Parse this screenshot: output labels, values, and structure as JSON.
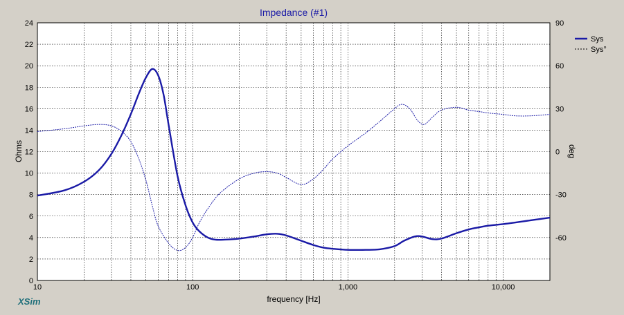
{
  "window": {
    "brand": "XSim"
  },
  "chart_data": {
    "type": "line",
    "title": "Impedance (#1)",
    "xlabel": "frequency [Hz]",
    "ylabel": "Ohms",
    "y2label": "deg",
    "xscale": "log",
    "xlim": [
      10,
      20000
    ],
    "ylim": [
      0,
      24
    ],
    "y2lim": [
      -90,
      90
    ],
    "grid": true,
    "legend_position": "top-right",
    "x_ticks": [
      {
        "value": 10,
        "label": "10"
      },
      {
        "value": 100,
        "label": "100"
      },
      {
        "value": 1000,
        "label": "1,000"
      },
      {
        "value": 10000,
        "label": "10,000"
      }
    ],
    "y_ticks": [
      "0",
      "2",
      "4",
      "6",
      "8",
      "10",
      "12",
      "14",
      "16",
      "18",
      "20",
      "22",
      "24"
    ],
    "y2_ticks": [
      "90",
      "60",
      "30",
      "0",
      "-30",
      "-60"
    ],
    "series": [
      {
        "name": "Sys",
        "axis": "left",
        "style": "solid-thick",
        "color": "#1a1aa6",
        "points": [
          [
            10,
            7.9
          ],
          [
            15,
            8.4
          ],
          [
            20,
            9.2
          ],
          [
            25,
            10.3
          ],
          [
            30,
            11.8
          ],
          [
            35,
            13.6
          ],
          [
            40,
            15.5
          ],
          [
            45,
            17.4
          ],
          [
            50,
            18.9
          ],
          [
            55,
            19.7
          ],
          [
            60,
            19.1
          ],
          [
            65,
            17.3
          ],
          [
            70,
            14.5
          ],
          [
            80,
            9.7
          ],
          [
            90,
            7.0
          ],
          [
            100,
            5.4
          ],
          [
            110,
            4.6
          ],
          [
            125,
            4.0
          ],
          [
            140,
            3.8
          ],
          [
            160,
            3.8
          ],
          [
            200,
            3.9
          ],
          [
            250,
            4.1
          ],
          [
            300,
            4.3
          ],
          [
            350,
            4.35
          ],
          [
            400,
            4.2
          ],
          [
            500,
            3.7
          ],
          [
            600,
            3.3
          ],
          [
            700,
            3.05
          ],
          [
            800,
            2.95
          ],
          [
            1000,
            2.85
          ],
          [
            1300,
            2.85
          ],
          [
            1600,
            2.9
          ],
          [
            2000,
            3.2
          ],
          [
            2300,
            3.7
          ],
          [
            2700,
            4.1
          ],
          [
            3000,
            4.1
          ],
          [
            3500,
            3.85
          ],
          [
            4000,
            3.9
          ],
          [
            5000,
            4.4
          ],
          [
            6000,
            4.75
          ],
          [
            7000,
            4.95
          ],
          [
            8000,
            5.1
          ],
          [
            10000,
            5.25
          ],
          [
            12000,
            5.4
          ],
          [
            15000,
            5.6
          ],
          [
            20000,
            5.85
          ]
        ]
      },
      {
        "name": "Sys°",
        "axis": "right",
        "style": "dashed-thin",
        "color": "#1a1aa6",
        "points": [
          [
            10,
            14
          ],
          [
            15,
            16
          ],
          [
            20,
            18
          ],
          [
            25,
            19
          ],
          [
            30,
            18
          ],
          [
            35,
            14
          ],
          [
            40,
            7
          ],
          [
            45,
            -5
          ],
          [
            50,
            -20
          ],
          [
            55,
            -38
          ],
          [
            60,
            -52
          ],
          [
            70,
            -64
          ],
          [
            80,
            -69
          ],
          [
            90,
            -67
          ],
          [
            100,
            -60
          ],
          [
            110,
            -50
          ],
          [
            125,
            -40
          ],
          [
            150,
            -29
          ],
          [
            200,
            -19
          ],
          [
            250,
            -15
          ],
          [
            300,
            -14
          ],
          [
            350,
            -15
          ],
          [
            400,
            -18
          ],
          [
            500,
            -23
          ],
          [
            600,
            -19
          ],
          [
            700,
            -12
          ],
          [
            800,
            -5
          ],
          [
            1000,
            4
          ],
          [
            1300,
            13
          ],
          [
            1600,
            21
          ],
          [
            1900,
            28
          ],
          [
            2200,
            33
          ],
          [
            2500,
            30
          ],
          [
            2800,
            22
          ],
          [
            3100,
            19
          ],
          [
            3500,
            24
          ],
          [
            4000,
            29
          ],
          [
            5000,
            31
          ],
          [
            6000,
            29
          ],
          [
            7000,
            28
          ],
          [
            8000,
            27
          ],
          [
            10000,
            26
          ],
          [
            12000,
            25
          ],
          [
            15000,
            25
          ],
          [
            20000,
            26
          ]
        ]
      }
    ]
  }
}
